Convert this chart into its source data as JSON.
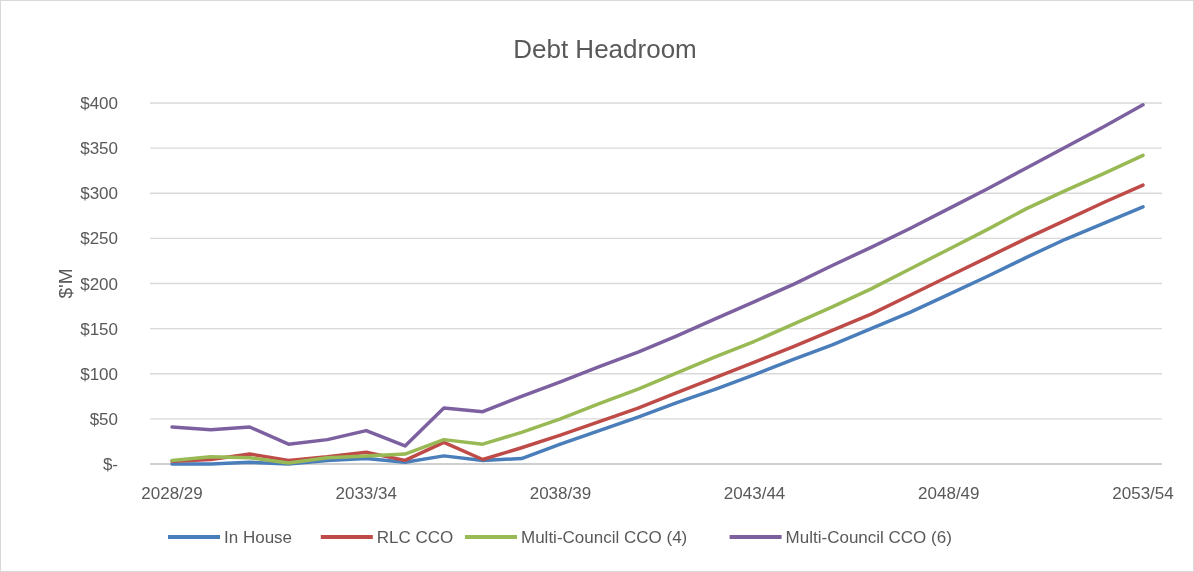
{
  "chart_data": {
    "type": "line",
    "title": "Debt Headroom",
    "ylabel": "$'M",
    "categories": [
      "2028/29",
      null,
      null,
      null,
      null,
      "2033/34",
      null,
      null,
      null,
      null,
      "2038/39",
      null,
      null,
      null,
      null,
      "2043/44",
      null,
      null,
      null,
      null,
      "2048/49",
      null,
      null,
      null,
      null,
      "2053/54"
    ],
    "series": [
      {
        "name": "In House",
        "color": "#4a7ebb",
        "values": [
          0,
          0,
          2,
          0,
          4,
          6,
          2,
          9,
          4,
          6,
          22,
          37,
          52,
          68,
          83,
          99,
          116,
          132,
          150,
          168,
          188,
          208,
          229,
          249,
          267,
          285
        ]
      },
      {
        "name": "RLC CCO",
        "color": "#be4b48",
        "values": [
          3,
          5,
          11,
          4,
          8,
          13,
          4,
          24,
          5,
          18,
          32,
          47,
          62,
          79,
          96,
          113,
          130,
          148,
          166,
          187,
          208,
          229,
          250,
          270,
          290,
          309
        ]
      },
      {
        "name": "Multi-Council CCO (4)",
        "color": "#98b954",
        "values": [
          4,
          8,
          7,
          1,
          7,
          9,
          11,
          27,
          22,
          35,
          50,
          67,
          83,
          101,
          119,
          136,
          155,
          174,
          194,
          216,
          238,
          260,
          283,
          303,
          322,
          342
        ]
      },
      {
        "name": "Multi-Council CCO (6)",
        "color": "#7d60a0",
        "values": [
          41,
          38,
          41,
          22,
          27,
          37,
          20,
          62,
          58,
          75,
          91,
          108,
          124,
          142,
          161,
          180,
          199,
          220,
          240,
          261,
          283,
          305,
          328,
          351,
          374,
          398
        ]
      }
    ],
    "ylim": [
      0,
      400
    ],
    "yticks": [
      {
        "value": 0,
        "label": "$-"
      },
      {
        "value": 50,
        "label": "$50"
      },
      {
        "value": 100,
        "label": "$100"
      },
      {
        "value": 150,
        "label": "$150"
      },
      {
        "value": 200,
        "label": "$200"
      },
      {
        "value": 250,
        "label": "$250"
      },
      {
        "value": 300,
        "label": "$300"
      },
      {
        "value": 350,
        "label": "$350"
      },
      {
        "value": 400,
        "label": "$400"
      }
    ],
    "grid": "y",
    "legend": "bottom",
    "marker": "none",
    "line_style": "solid"
  }
}
